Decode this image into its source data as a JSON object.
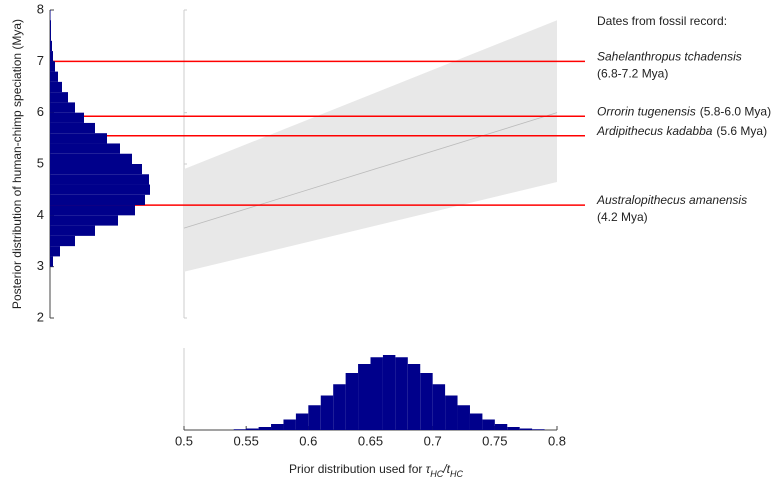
{
  "chart_data": [
    {
      "type": "histogram",
      "orientation": "horizontal",
      "ylabel": "Posterior distribution of human-chimp speciation (Mya)",
      "ylim": [
        2,
        8
      ],
      "yticks": [
        2,
        3,
        4,
        5,
        6,
        7,
        8
      ],
      "bins": [
        3,
        3.2,
        3.4,
        3.6,
        3.8,
        4,
        4.2,
        4.4,
        4.6,
        4.8,
        5,
        5.2,
        5.4,
        5.6,
        5.8,
        6,
        6.2,
        6.4,
        6.6,
        6.8,
        7,
        7.2,
        7.4,
        7.6,
        7.8,
        8
      ],
      "counts": [
        3,
        10,
        25,
        45,
        68,
        85,
        95,
        100,
        99,
        92,
        82,
        70,
        57,
        45,
        34,
        25,
        18,
        12,
        8,
        5,
        3,
        2,
        1,
        1,
        0.5
      ],
      "color": "#00008b"
    },
    {
      "type": "band",
      "xlim": [
        0.5,
        0.8
      ],
      "ylim": [
        2,
        8
      ],
      "x": [
        0.5,
        0.8
      ],
      "lower": [
        2.9,
        4.65
      ],
      "upper": [
        4.9,
        7.8
      ],
      "center": [
        3.75,
        6.0
      ],
      "band_color": "#e8e8e8",
      "line_color": "#bbbbbb",
      "reference_lines": {
        "title": "Dates from fossil record:",
        "color": "#ff0000",
        "lines": [
          {
            "value": 7.0,
            "name": "Sahelanthropus tchadensis",
            "range": "(6.8-7.2 Mya)"
          },
          {
            "value": 5.93,
            "name": "Orrorin tugenensis",
            "range": "(5.8-6.0 Mya)"
          },
          {
            "value": 5.55,
            "name": "Ardipithecus kadabba",
            "range": "(5.6 Mya)"
          },
          {
            "value": 4.2,
            "name": "Australopithecus amanensis",
            "range": "(4.2 Mya)"
          }
        ]
      }
    },
    {
      "type": "histogram",
      "orientation": "vertical",
      "xlabel": {
        "text": "Prior distribution used for",
        "tau": "τ",
        "sub1": "HC",
        "slash": "/t",
        "sub2": "HC"
      },
      "xlim": [
        0.5,
        0.8
      ],
      "xticks": [
        0.5,
        0.55,
        0.6,
        0.65,
        0.7,
        0.75,
        0.8
      ],
      "bins": [
        0.54,
        0.55,
        0.56,
        0.57,
        0.58,
        0.59,
        0.6,
        0.61,
        0.62,
        0.63,
        0.64,
        0.65,
        0.66,
        0.67,
        0.68,
        0.69,
        0.7,
        0.71,
        0.72,
        0.73,
        0.74,
        0.75,
        0.76,
        0.77,
        0.78,
        0.79
      ],
      "counts": [
        1,
        2,
        4,
        8,
        14,
        22,
        33,
        46,
        61,
        76,
        88,
        97,
        100,
        97,
        88,
        76,
        61,
        46,
        33,
        22,
        14,
        8,
        4,
        2,
        1
      ],
      "color": "#00008b"
    }
  ]
}
